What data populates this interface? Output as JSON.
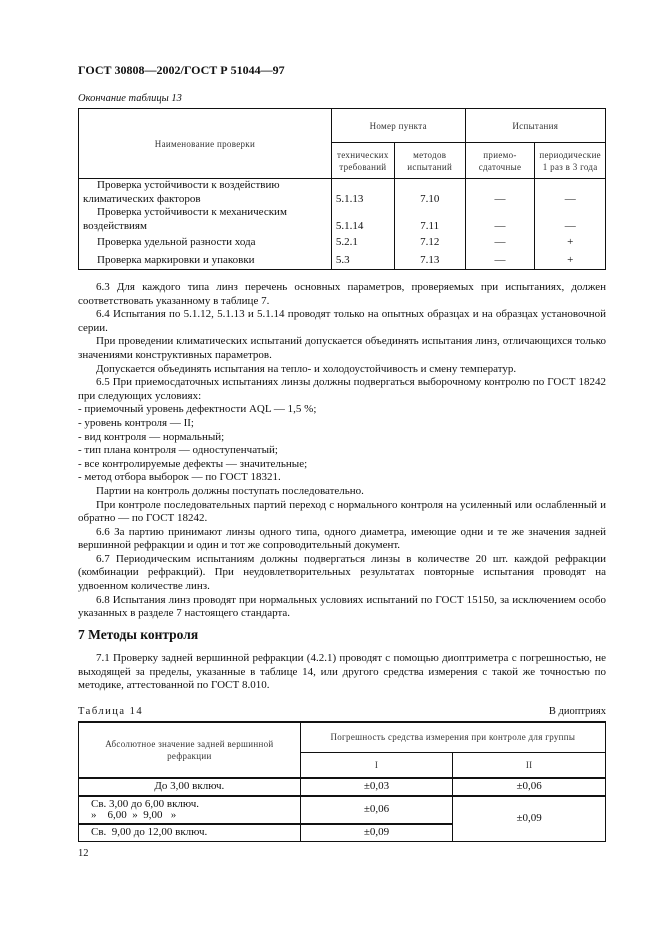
{
  "header": "ГОСТ 30808—2002/ГОСТ Р 51044—97",
  "table13": {
    "caption": "Окончание таблицы 13",
    "col_name": "Наименование проверки",
    "group_item": "Номер пункта",
    "group_tests": "Испытания",
    "sub": [
      "технических требований",
      "методов испытаний",
      "приемо-сдаточные",
      "периодические 1 раз в 3 года"
    ],
    "rows": [
      {
        "name": "Проверка устойчивости к воздействию климатических факторов",
        "tech": "5.1.13",
        "method": "7.10",
        "accept": "—",
        "periodic": "—"
      },
      {
        "name": "Проверка устойчивости к механическим воздействиям",
        "tech": "5.1.14",
        "method": "7.11",
        "accept": "—",
        "periodic": "—"
      },
      {
        "name": "Проверка удельной разности хода",
        "tech": "5.2.1",
        "method": "7.12",
        "accept": "—",
        "periodic": "+"
      },
      {
        "name": "Проверка маркировки и упаковки",
        "tech": "5.3",
        "method": "7.13",
        "accept": "—",
        "periodic": "+"
      }
    ]
  },
  "paragraphs": [
    "6.3 Для каждого типа линз перечень основных параметров, проверяемых при испытаниях, должен соответствовать указанному в таблице 7.",
    "6.4 Испытания по 5.1.12, 5.1.13 и 5.1.14 проводят только на опытных образцах и на образцах установочной серии.",
    "При проведении климатических испытаний допускается объединять испытания линз, отличающихся только значениями конструктивных параметров.",
    "Допускается объединять испытания на тепло- и холодоустойчивость и смену температур.",
    "6.5 При приемосдаточных испытаниях линзы должны подвергаться выборочному контролю по ГОСТ 18242 при следующих условиях:"
  ],
  "conditions": [
    "- приемочный уровень дефектности AQL — 1,5 %;",
    "- уровень контроля — II;",
    "- вид контроля — нормальный;",
    "- тип плана контроля — одноступенчатый;",
    "- все контролируемые дефекты — значительные;",
    "- метод отбора выборок — по ГОСТ 18321."
  ],
  "paragraphs2": [
    "Партии на контроль должны поступать последовательно.",
    "При контроле последовательных партий переход с нормального контроля на усиленный или ослабленный и обратно — по ГОСТ 18242.",
    "6.6 За партию принимают линзы одного типа, одного диаметра, имеющие одни и те же значения задней вершинной рефракции и один и тот же сопроводительный документ.",
    "6.7 Периодическим испытаниям должны подвергаться линзы в количестве 20 шт. каждой рефракции (комбинации рефракций). При неудовлетворительных результатах повторные испытания проводят на удвоенном количестве линз.",
    "6.8 Испытания линз проводят при нормальных условиях испытаний по ГОСТ 15150, за исключением особо указанных в разделе 7 настоящего стандарта."
  ],
  "section7": {
    "heading": "7 Методы контроля",
    "p71": "7.1 Проверку задней вершинной рефракции (4.2.1) проводят с помощью диоптриметра с погрешностью, не выходящей за пределы, указанные в таблице 14, или другого средства измерения с такой же точностью по методике, аттестованной по ГОСТ 8.010."
  },
  "table14": {
    "caption": "Таблица 14",
    "unit": "В диоптриях",
    "col_value": "Абсолютное значение задней вершинной рефракции",
    "col_error": "Погрешность средства измерения при контроле для группы",
    "groups": [
      "I",
      "II"
    ],
    "rows": [
      {
        "range": "До 3,00 включ.",
        "g1": "±0,03",
        "g2": "±0,06"
      },
      {
        "range1": "Св.  3,00 до 6,00 включ.",
        "range2": "»    6,00  »  9,00   »",
        "g1": "±0,06",
        "g2": "±0,09"
      },
      {
        "range": "Св.  9,00 до 12,00 включ.",
        "g1": "±0,09"
      }
    ]
  },
  "page_number": "12"
}
